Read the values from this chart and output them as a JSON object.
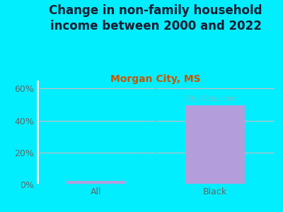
{
  "title": "Change in non-family household\nincome between 2000 and 2022",
  "subtitle": "Morgan City, MS",
  "categories": [
    "All",
    "Black"
  ],
  "values": [
    2.0,
    49.5
  ],
  "bar_color": "#b39ddb",
  "title_fontsize": 12,
  "subtitle_fontsize": 10,
  "subtitle_color": "#cc5500",
  "title_color": "#1a1a2e",
  "background_color": "#00eeff",
  "plot_bg_gradient_left": "#dff0df",
  "plot_bg_gradient_right": "#f5f5f8",
  "ylim": [
    0,
    65
  ],
  "yticks": [
    0,
    20,
    40,
    60
  ],
  "ytick_labels": [
    "0%",
    "20%",
    "40%",
    "60%"
  ],
  "grid_color": "#e8b4b8",
  "tick_color": "#666666",
  "watermark": "City-Data.com"
}
